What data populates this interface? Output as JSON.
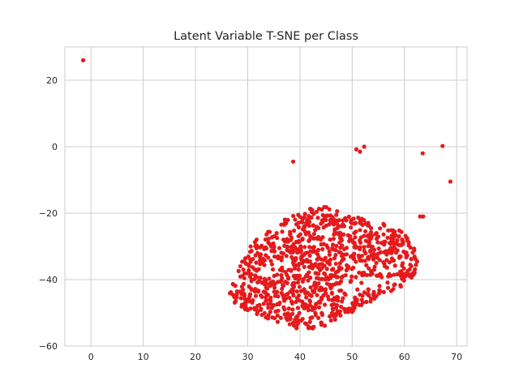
{
  "chart_data": {
    "type": "scatter",
    "title": "Latent Variable T-SNE per Class",
    "xlabel": "",
    "ylabel": "",
    "xlim": [
      -5,
      72
    ],
    "ylim": [
      -60,
      30
    ],
    "xticks": [
      0,
      10,
      20,
      30,
      40,
      50,
      60,
      70
    ],
    "yticks": [
      20,
      0,
      -20,
      -40,
      -60
    ],
    "grid": true,
    "point_color": "#e41a1c",
    "outliers": [
      {
        "x": -1.5,
        "y": 26.0
      },
      {
        "x": 38.7,
        "y": -4.5
      },
      {
        "x": 50.8,
        "y": -0.8
      },
      {
        "x": 51.5,
        "y": -1.5
      },
      {
        "x": 52.3,
        "y": 0.0
      },
      {
        "x": 63.5,
        "y": -2.0
      },
      {
        "x": 67.3,
        "y": 0.2
      },
      {
        "x": 68.8,
        "y": -10.5
      },
      {
        "x": 63.0,
        "y": -21.0
      },
      {
        "x": 63.6,
        "y": -21.0
      }
    ],
    "cluster_outline": [
      [
        26.5,
        -44.0
      ],
      [
        28.0,
        -38.0
      ],
      [
        30.0,
        -30.5
      ],
      [
        33.0,
        -26.0
      ],
      [
        37.0,
        -21.5
      ],
      [
        41.0,
        -18.5
      ],
      [
        45.0,
        -18.0
      ],
      [
        49.0,
        -20.0
      ],
      [
        53.0,
        -22.0
      ],
      [
        57.0,
        -23.5
      ],
      [
        60.0,
        -26.0
      ],
      [
        62.0,
        -29.5
      ],
      [
        62.5,
        -34.0
      ],
      [
        62.0,
        -39.0
      ],
      [
        60.0,
        -41.5
      ],
      [
        56.0,
        -45.0
      ],
      [
        52.0,
        -48.5
      ],
      [
        48.0,
        -51.5
      ],
      [
        45.0,
        -55.0
      ],
      [
        40.0,
        -55.0
      ],
      [
        35.0,
        -52.5
      ],
      [
        31.0,
        -50.0
      ],
      [
        27.5,
        -48.0
      ]
    ],
    "cluster_point_count": 1000
  }
}
